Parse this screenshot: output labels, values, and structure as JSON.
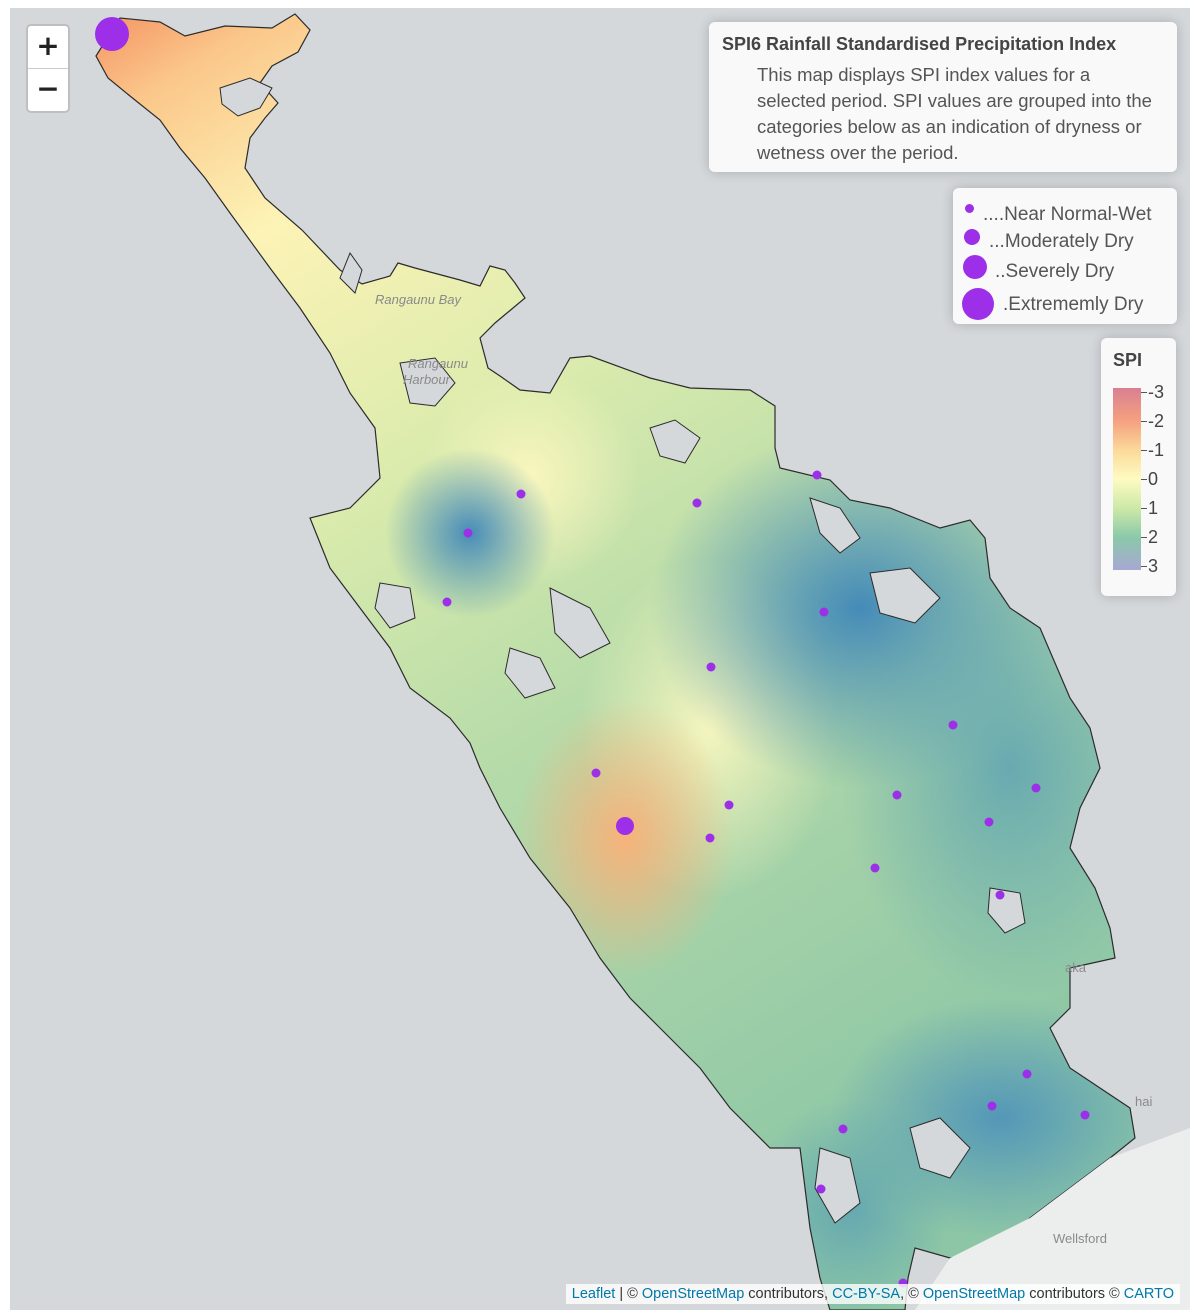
{
  "map": {
    "zoom_in": "+",
    "zoom_out": "−",
    "place_labels": [
      "Rangaunu Bay",
      "Rangaunu",
      "Harbour",
      "Wellsford",
      "aka",
      "hai"
    ]
  },
  "info_box": {
    "title": "SPI6 Rainfall Standardised Precipitation Index",
    "description": "This map displays SPI index values for a selected period. SPI values are grouped into the categories below as an indication of dryness or wetness over the period."
  },
  "size_legend": {
    "items": [
      "....Near Normal-Wet",
      "...Moderately Dry",
      "..Severely Dry",
      ".Extrememly Dry"
    ],
    "marker_color": "#9d2fe8"
  },
  "color_legend": {
    "title": "SPI",
    "ticks": [
      "-3",
      "-2",
      "-1",
      "0",
      "1",
      "2",
      "3"
    ],
    "colors": [
      "#d97f92",
      "#f5a07f",
      "#fbd99a",
      "#fdfbc1",
      "#cde9a7",
      "#8ac9a9",
      "#a8a8d3"
    ]
  },
  "stations": [
    {
      "category": "Extrememly Dry"
    },
    {
      "category": "Severely Dry"
    },
    {
      "category": "Near Normal-Wet"
    }
  ],
  "attribution": {
    "leaflet": "Leaflet",
    "sep1": " | © ",
    "osm1": "OpenStreetMap",
    "mid1": " contributors, ",
    "ccbysa": "CC-BY-SA",
    "sep2": ", © ",
    "osm2": "OpenStreetMap",
    "mid2": " contributors © ",
    "carto": "CARTO"
  }
}
